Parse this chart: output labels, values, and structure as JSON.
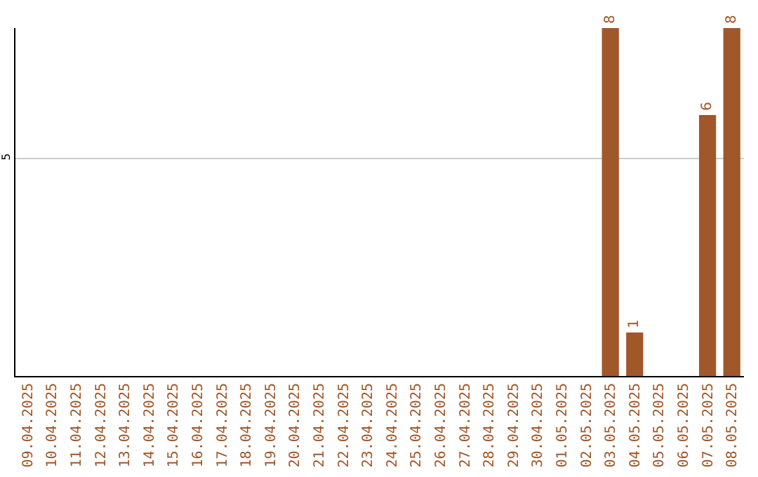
{
  "chart_data": {
    "type": "bar",
    "categories": [
      "09.04.2025",
      "10.04.2025",
      "11.04.2025",
      "12.04.2025",
      "13.04.2025",
      "14.04.2025",
      "15.04.2025",
      "16.04.2025",
      "17.04.2025",
      "18.04.2025",
      "19.04.2025",
      "20.04.2025",
      "21.04.2025",
      "22.04.2025",
      "23.04.2025",
      "24.04.2025",
      "25.04.2025",
      "26.04.2025",
      "27.04.2025",
      "28.04.2025",
      "29.04.2025",
      "30.04.2025",
      "01.05.2025",
      "02.05.2025",
      "03.05.2025",
      "04.05.2025",
      "05.05.2025",
      "06.05.2025",
      "07.05.2025",
      "08.05.2025"
    ],
    "values": [
      null,
      null,
      null,
      null,
      null,
      null,
      null,
      null,
      null,
      null,
      null,
      null,
      null,
      null,
      null,
      null,
      null,
      null,
      null,
      null,
      null,
      null,
      null,
      null,
      8,
      1,
      null,
      null,
      6,
      8
    ],
    "color": "#a0572a",
    "ylim": [
      0,
      8
    ],
    "yticks": [
      5
    ],
    "grid": "y",
    "data_labels": true,
    "legend": false
  }
}
